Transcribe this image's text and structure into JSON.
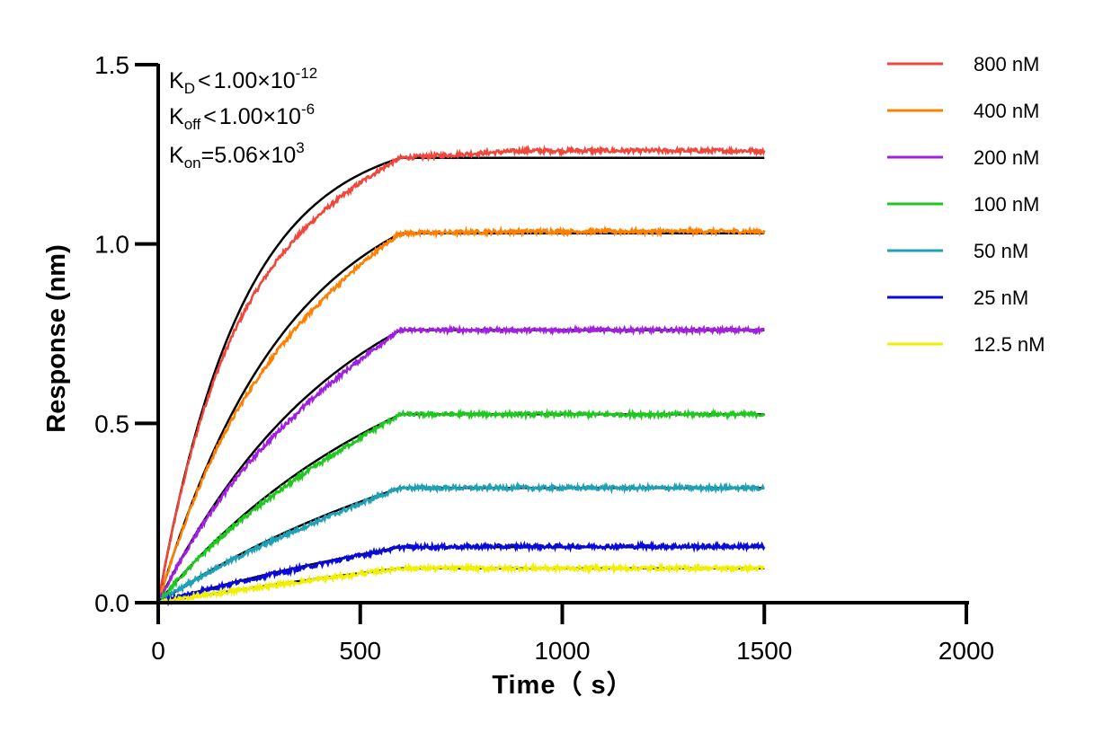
{
  "chart_data": {
    "type": "line",
    "xlabel": "Time（ s）",
    "ylabel": "Response (nm)",
    "xlim": [
      0,
      2000
    ],
    "ylim": [
      0,
      1.5
    ],
    "x_ticks": [
      "0",
      "500",
      "1000",
      "1500",
      "2000"
    ],
    "y_ticks": [
      "0.0",
      "0.5",
      "1.0",
      "1.5"
    ],
    "association_end_s": 600,
    "end_s": 1500,
    "grid": false,
    "legend_position": "top-right",
    "annotations": {
      "kd": {
        "sym": "K",
        "sub": "D",
        "rel": "<",
        "mant": "1.00×10",
        "exp": "-12"
      },
      "koff": {
        "sym": "K",
        "sub": "off",
        "rel": "<",
        "mant": "1.00×10",
        "exp": "-6"
      },
      "kon": {
        "sym": "K",
        "sub": "on",
        "rel": "=",
        "mant": "5.06×10",
        "exp": "3"
      }
    },
    "fit_color": "#000000",
    "series": [
      {
        "name": "800 nM",
        "color": "#f0463c",
        "plateau": 1.24,
        "observed": 1.26,
        "k_obs": 0.0048
      },
      {
        "name": "400 nM",
        "color": "#ff8000",
        "plateau": 1.03,
        "observed": 1.035,
        "k_obs": 0.0031
      },
      {
        "name": "200 nM",
        "color": "#a020e0",
        "plateau": 0.76,
        "observed": 0.76,
        "k_obs": 0.0022
      },
      {
        "name": "100 nM",
        "color": "#1ec81e",
        "plateau": 0.525,
        "observed": 0.525,
        "k_obs": 0.0016
      },
      {
        "name": "50 nM",
        "color": "#1fa0b4",
        "plateau": 0.32,
        "observed": 0.32,
        "k_obs": 0.0012
      },
      {
        "name": "25 nM",
        "color": "#0a0adc",
        "plateau": 0.155,
        "observed": 0.157,
        "k_obs": 0.0008
      },
      {
        "name": "12.5 nM",
        "color": "#f0f000",
        "plateau": 0.096,
        "observed": 0.096,
        "k_obs": 0.0006
      }
    ]
  }
}
